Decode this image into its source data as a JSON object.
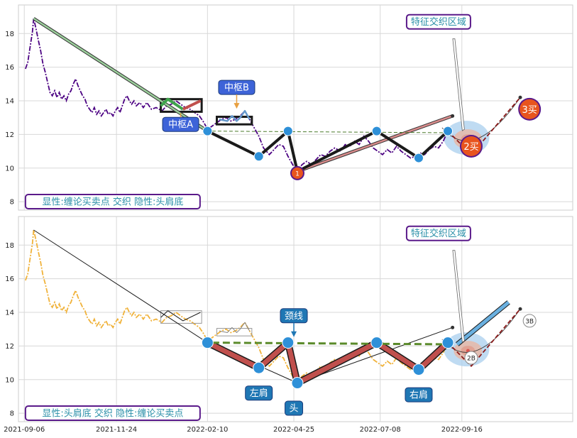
{
  "chart_data": [
    {
      "type": "line",
      "panel": "top",
      "ylim": [
        7.5,
        19.7
      ],
      "yticks": [
        8,
        10,
        12,
        14,
        16,
        18
      ],
      "x_range": [
        "2021-09-01",
        "2022-12-20"
      ],
      "grid": true,
      "price_series": {
        "color": "#4b0082",
        "style": "dash-dot",
        "points": [
          [
            "2021-09-07",
            15.9
          ],
          [
            "2021-09-09",
            16.3
          ],
          [
            "2021-09-11",
            17.2
          ],
          [
            "2021-09-13",
            18.1
          ],
          [
            "2021-09-14",
            18.9
          ],
          [
            "2021-09-16",
            18.3
          ],
          [
            "2021-09-18",
            17.6
          ],
          [
            "2021-09-20",
            17.0
          ],
          [
            "2021-09-22",
            16.2
          ],
          [
            "2021-09-24",
            15.7
          ],
          [
            "2021-09-26",
            15.1
          ],
          [
            "2021-09-28",
            14.5
          ],
          [
            "2021-09-30",
            14.3
          ],
          [
            "2021-10-02",
            14.6
          ],
          [
            "2021-10-04",
            14.2
          ],
          [
            "2021-10-06",
            14.5
          ],
          [
            "2021-10-08",
            14.1
          ],
          [
            "2021-10-10",
            14.3
          ],
          [
            "2021-10-12",
            14.0
          ],
          [
            "2021-10-14",
            14.4
          ],
          [
            "2021-10-16",
            14.6
          ],
          [
            "2021-10-18",
            15.0
          ],
          [
            "2021-10-20",
            15.3
          ],
          [
            "2021-10-22",
            14.9
          ],
          [
            "2021-10-24",
            14.6
          ],
          [
            "2021-10-26",
            14.3
          ],
          [
            "2021-10-28",
            14.1
          ],
          [
            "2021-10-30",
            13.7
          ],
          [
            "2021-11-01",
            13.5
          ],
          [
            "2021-11-03",
            13.3
          ],
          [
            "2021-11-05",
            13.6
          ],
          [
            "2021-11-07",
            13.2
          ],
          [
            "2021-11-09",
            13.4
          ],
          [
            "2021-11-11",
            13.1
          ],
          [
            "2021-11-13",
            13.3
          ],
          [
            "2021-11-15",
            13.5
          ],
          [
            "2021-11-17",
            13.2
          ],
          [
            "2021-11-19",
            13.3
          ],
          [
            "2021-11-21",
            13.1
          ],
          [
            "2021-11-23",
            13.4
          ],
          [
            "2021-11-25",
            13.6
          ],
          [
            "2021-11-27",
            13.3
          ],
          [
            "2021-11-29",
            13.7
          ],
          [
            "2021-12-01",
            14.1
          ],
          [
            "2021-12-03",
            14.3
          ],
          [
            "2021-12-05",
            14.0
          ],
          [
            "2021-12-07",
            13.8
          ],
          [
            "2021-12-09",
            14.0
          ],
          [
            "2021-12-11",
            13.7
          ],
          [
            "2021-12-14",
            13.9
          ],
          [
            "2021-12-17",
            13.6
          ],
          [
            "2021-12-20",
            13.9
          ],
          [
            "2021-12-24",
            13.5
          ],
          [
            "2021-12-28",
            13.6
          ],
          [
            "2022-01-02",
            13.4
          ],
          [
            "2022-01-06",
            13.7
          ],
          [
            "2022-01-10",
            13.8
          ],
          [
            "2022-01-14",
            14.0
          ],
          [
            "2022-01-18",
            13.8
          ],
          [
            "2022-01-22",
            13.6
          ],
          [
            "2022-01-26",
            13.5
          ],
          [
            "2022-01-30",
            13.3
          ],
          [
            "2022-02-03",
            13.1
          ],
          [
            "2022-02-07",
            12.7
          ],
          [
            "2022-02-10",
            12.3
          ],
          [
            "2022-02-14",
            12.5
          ],
          [
            "2022-02-18",
            12.7
          ],
          [
            "2022-02-22",
            12.9
          ],
          [
            "2022-02-26",
            13.0
          ],
          [
            "2022-03-02",
            12.8
          ],
          [
            "2022-03-06",
            12.9
          ],
          [
            "2022-03-10",
            13.1
          ],
          [
            "2022-03-14",
            13.4
          ],
          [
            "2022-03-18",
            12.9
          ],
          [
            "2022-03-22",
            12.4
          ],
          [
            "2022-03-26",
            11.9
          ],
          [
            "2022-03-30",
            11.2
          ],
          [
            "2022-04-04",
            10.8
          ],
          [
            "2022-04-08",
            11.1
          ],
          [
            "2022-04-12",
            11.4
          ],
          [
            "2022-04-16",
            11.3
          ],
          [
            "2022-04-20",
            10.7
          ],
          [
            "2022-04-24",
            10.2
          ],
          [
            "2022-04-28",
            9.8
          ],
          [
            "2022-05-02",
            10.2
          ],
          [
            "2022-05-06",
            10.4
          ],
          [
            "2022-05-10",
            10.2
          ],
          [
            "2022-05-14",
            10.5
          ],
          [
            "2022-05-18",
            10.8
          ],
          [
            "2022-05-22",
            10.7
          ],
          [
            "2022-05-26",
            11.0
          ],
          [
            "2022-05-30",
            11.2
          ],
          [
            "2022-06-04",
            11.0
          ],
          [
            "2022-06-08",
            11.4
          ],
          [
            "2022-06-12",
            11.3
          ],
          [
            "2022-06-16",
            11.6
          ],
          [
            "2022-06-20",
            11.4
          ],
          [
            "2022-06-24",
            11.9
          ],
          [
            "2022-06-28",
            11.6
          ],
          [
            "2022-07-02",
            11.2
          ],
          [
            "2022-07-06",
            11.0
          ],
          [
            "2022-07-10",
            10.8
          ],
          [
            "2022-07-14",
            11.1
          ],
          [
            "2022-07-18",
            10.9
          ],
          [
            "2022-07-22",
            11.3
          ],
          [
            "2022-07-26",
            11.0
          ],
          [
            "2022-07-30",
            10.8
          ],
          [
            "2022-08-03",
            10.6
          ],
          [
            "2022-08-07",
            10.7
          ],
          [
            "2022-08-11",
            10.9
          ],
          [
            "2022-08-15",
            10.8
          ],
          [
            "2022-08-19",
            11.1
          ],
          [
            "2022-08-23",
            11.3
          ],
          [
            "2022-08-27",
            11.2
          ],
          [
            "2022-08-31",
            11.6
          ],
          [
            "2022-09-04",
            12.2
          ]
        ]
      },
      "segments": [
        {
          "kind": "trend",
          "color": "#9ccf9c",
          "width": 3,
          "points": [
            [
              "2021-09-14",
              18.9
            ],
            [
              "2022-02-10",
              12.2
            ]
          ]
        },
        {
          "kind": "trend",
          "color": "#d98c8c",
          "width": 3,
          "points": [
            [
              "2022-04-28",
              9.8
            ],
            [
              "2022-09-08",
              13.1
            ]
          ]
        },
        {
          "kind": "stroke",
          "color": "#1a1a1a",
          "width": 4,
          "points": [
            [
              "2022-02-10",
              12.2
            ],
            [
              "2022-03-26",
              10.7
            ],
            [
              "2022-04-20",
              12.2
            ],
            [
              "2022-04-28",
              9.8
            ],
            [
              "2022-07-05",
              12.2
            ],
            [
              "2022-08-10",
              10.6
            ],
            [
              "2022-09-04",
              12.2
            ]
          ]
        },
        {
          "kind": "hub",
          "color": "#3fa34d",
          "width": 4,
          "points": [
            [
              "2022-01-01",
              13.7
            ],
            [
              "2022-01-07",
              14.1
            ],
            [
              "2022-01-20",
              13.5
            ]
          ]
        },
        {
          "kind": "hub",
          "color": "#c0504d",
          "width": 4,
          "points": [
            [
              "2022-01-20",
              13.5
            ],
            [
              "2022-02-04",
              14.0
            ]
          ]
        },
        {
          "kind": "hub",
          "color": "#6699cc",
          "width": 2.5,
          "points": [
            [
              "2022-02-20",
              12.9
            ],
            [
              "2022-02-27",
              12.8
            ],
            [
              "2022-03-03",
              13.1
            ],
            [
              "2022-03-07",
              12.8
            ],
            [
              "2022-03-10",
              13.0
            ],
            [
              "2022-03-14",
              13.4
            ],
            [
              "2022-03-18",
              12.9
            ]
          ]
        },
        {
          "kind": "buy",
          "color": "#8b1a1a",
          "width": 1.8,
          "dash": "6 3",
          "points": [
            [
              "2022-09-04",
              12.2
            ],
            [
              "2022-09-24",
              10.8
            ],
            [
              "2022-11-05",
              14.2
            ]
          ]
        },
        {
          "kind": "neckline",
          "color": "#4a7a2a",
          "width": 1,
          "dash": "5 3",
          "points": [
            [
              "2022-02-14",
              12.2
            ],
            [
              "2022-09-04",
              12.1
            ]
          ]
        }
      ],
      "boxes": [
        {
          "name": "zhongshu-a",
          "x0": "2022-01-01",
          "x1": "2022-02-05",
          "y0": 13.35,
          "y1": 14.1,
          "color": "#1a1a1a",
          "width": 3
        },
        {
          "name": "zhongshu-b",
          "x0": "2022-02-18",
          "x1": "2022-03-20",
          "y0": 12.6,
          "y1": 13.05,
          "color": "#1a1a1a",
          "width": 3
        }
      ],
      "markers": [
        {
          "name": "pivot",
          "x": "2022-02-10",
          "y": 12.2
        },
        {
          "name": "pivot",
          "x": "2022-03-26",
          "y": 10.7
        },
        {
          "name": "pivot",
          "x": "2022-04-20",
          "y": 12.2
        },
        {
          "name": "pivot",
          "x": "2022-07-05",
          "y": 12.2
        },
        {
          "name": "pivot",
          "x": "2022-08-10",
          "y": 10.6
        },
        {
          "name": "pivot",
          "x": "2022-09-04",
          "y": 12.2
        }
      ],
      "buy_points": [
        {
          "label": "1",
          "x": "2022-04-28",
          "y": 9.7,
          "r": 8
        },
        {
          "label": "2买",
          "x": "2022-09-24",
          "y": 11.3,
          "r": 14
        },
        {
          "label": "3买",
          "x": "2022-11-13",
          "y": 13.5,
          "r": 14
        }
      ],
      "annotations": [
        {
          "text": "中枢A",
          "x": "2022-01-18",
          "y": 12.6,
          "color": "#3d63d8"
        },
        {
          "text": "中枢B",
          "x": "2022-03-07",
          "y": 14.8,
          "color": "#3d63d8"
        },
        {
          "text": "特征交织区域",
          "x": "2022-08-27",
          "y": 18.7,
          "color": "#2a8fa8"
        },
        {
          "text": "显性:缠论买卖点 交织 隐性:头肩底",
          "x": "2021-09-07",
          "y": 7.7,
          "color": "#2a8fa8"
        }
      ],
      "highlight_zone": {
        "x": "2022-09-20",
        "y": 11.8
      }
    },
    {
      "type": "line",
      "panel": "bottom",
      "ylim": [
        7.5,
        19.7
      ],
      "yticks": [
        8,
        10,
        12,
        14,
        16,
        18
      ],
      "xticks": [
        "2021-09-06",
        "2021-11-24",
        "2022-02-10",
        "2022-04-25",
        "2022-07-08",
        "2022-09-16"
      ],
      "x_range": [
        "2021-09-01",
        "2022-12-20"
      ],
      "grid": true,
      "price_series": {
        "color": "#f0b23a",
        "style": "dash-dot",
        "ref": "top"
      },
      "segments": [
        {
          "kind": "thin",
          "color": "#1a1a1a",
          "width": 1,
          "points": [
            [
              "2021-09-14",
              18.9
            ],
            [
              "2022-02-10",
              12.2
            ],
            [
              "2022-04-28",
              9.8
            ],
            [
              "2022-09-08",
              13.1
            ]
          ]
        },
        {
          "kind": "thin",
          "color": "#1a1a1a",
          "width": 1,
          "points": [
            [
              "2022-01-01",
              13.7
            ],
            [
              "2022-01-07",
              14.1
            ],
            [
              "2022-01-20",
              13.5
            ],
            [
              "2022-02-04",
              14.0
            ]
          ]
        },
        {
          "kind": "thin",
          "color": "#888888",
          "width": 1,
          "points": [
            [
              "2022-02-20",
              12.9
            ],
            [
              "2022-02-27",
              12.8
            ],
            [
              "2022-03-03",
              13.1
            ],
            [
              "2022-03-07",
              12.8
            ],
            [
              "2022-03-10",
              13.0
            ],
            [
              "2022-03-14",
              13.4
            ],
            [
              "2022-03-18",
              12.9
            ]
          ]
        },
        {
          "kind": "shoulder",
          "color": "#c0504d",
          "width": 7,
          "points": [
            [
              "2022-02-10",
              12.2
            ],
            [
              "2022-03-26",
              10.7
            ],
            [
              "2022-04-20",
              12.2
            ],
            [
              "2022-04-28",
              9.8
            ],
            [
              "2022-07-05",
              12.2
            ],
            [
              "2022-08-10",
              10.6
            ],
            [
              "2022-09-04",
              12.2
            ]
          ]
        },
        {
          "kind": "neckline",
          "color": "#5a8a2a",
          "width": 3,
          "dash": "10 5",
          "points": [
            [
              "2022-02-14",
              12.2
            ],
            [
              "2022-09-04",
              12.1
            ]
          ]
        },
        {
          "kind": "buy",
          "color": "#8b1a1a",
          "width": 1.8,
          "dash": "6 3",
          "points": [
            [
              "2022-09-04",
              12.2
            ],
            [
              "2022-09-24",
              10.8
            ],
            [
              "2022-11-05",
              14.2
            ]
          ]
        },
        {
          "kind": "target",
          "color": "#6ab0e0",
          "width": 5,
          "points": [
            [
              "2022-09-12",
              12.1
            ],
            [
              "2022-10-26",
              14.6
            ]
          ]
        }
      ],
      "boxes": [
        {
          "name": "zhongshu-a",
          "x0": "2022-01-01",
          "x1": "2022-02-05",
          "y0": 13.35,
          "y1": 14.1,
          "color": "#999999",
          "width": 1
        },
        {
          "name": "zhongshu-b",
          "x0": "2022-02-18",
          "x1": "2022-03-20",
          "y0": 12.6,
          "y1": 13.05,
          "color": "#999999",
          "width": 1
        }
      ],
      "markers": [
        {
          "name": "pivot",
          "x": "2022-02-10",
          "y": 12.2
        },
        {
          "name": "pivot",
          "x": "2022-03-26",
          "y": 10.7
        },
        {
          "name": "pivot",
          "x": "2022-04-20",
          "y": 12.2
        },
        {
          "name": "pivot",
          "x": "2022-04-28",
          "y": 9.8
        },
        {
          "name": "pivot",
          "x": "2022-07-05",
          "y": 12.2
        },
        {
          "name": "pivot",
          "x": "2022-08-10",
          "y": 10.6
        },
        {
          "name": "pivot",
          "x": "2022-09-04",
          "y": 12.2
        }
      ],
      "buy_points": [
        {
          "label": "2B",
          "x": "2022-09-24",
          "y": 11.3,
          "r": 9
        },
        {
          "label": "3B",
          "x": "2022-11-13",
          "y": 13.5,
          "r": 9
        }
      ],
      "annotations": [
        {
          "text": "颈线",
          "x": "2022-04-25",
          "y": 13.8,
          "color": "#1f77b4"
        },
        {
          "text": "左肩",
          "x": "2022-03-26",
          "y": 9.2,
          "color": "#1f77b4"
        },
        {
          "text": "头",
          "x": "2022-04-25",
          "y": 8.3,
          "color": "#1f77b4"
        },
        {
          "text": "右肩",
          "x": "2022-08-10",
          "y": 9.1,
          "color": "#1f77b4"
        },
        {
          "text": "特征交织区域",
          "x": "2022-08-27",
          "y": 18.7,
          "color": "#2a8fa8"
        },
        {
          "text": "显性:头肩底 交织 隐性:缠论买卖点",
          "x": "2021-09-07",
          "y": 7.7,
          "color": "#2a8fa8"
        }
      ],
      "highlight_zone": {
        "x": "2022-09-20",
        "y": 11.8
      }
    }
  ]
}
